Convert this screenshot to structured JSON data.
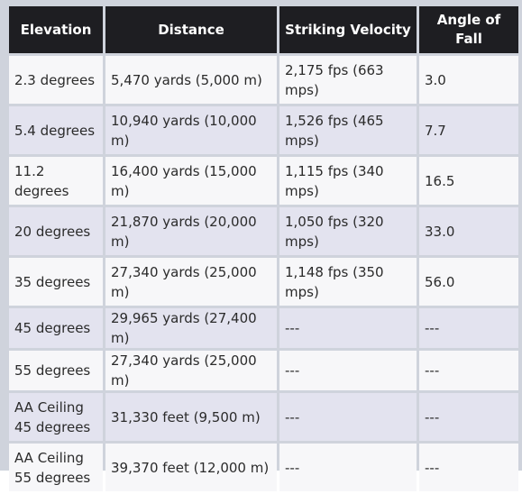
{
  "table": {
    "headers": [
      "Elevation",
      "Distance",
      "Striking Velocity",
      "Angle of Fall"
    ],
    "rows": [
      {
        "elevation": "2.3 degrees",
        "distance": "5,470 yards (5,000 m)",
        "velocity": "2,175 fps (663 mps)",
        "angle": "3.0"
      },
      {
        "elevation": "5.4 degrees",
        "distance": "10,940 yards (10,000 m)",
        "velocity": "1,526 fps (465 mps)",
        "angle": "7.7"
      },
      {
        "elevation": "11.2 degrees",
        "distance": "16,400 yards (15,000 m)",
        "velocity": "1,115 fps (340 mps)",
        "angle": "16.5"
      },
      {
        "elevation": "20 degrees",
        "distance": "21,870 yards (20,000 m)",
        "velocity": "1,050 fps (320 mps)",
        "angle": "33.0"
      },
      {
        "elevation": "35 degrees",
        "distance": "27,340 yards (25,000 m)",
        "velocity": "1,148 fps (350 mps)",
        "angle": "56.0"
      },
      {
        "elevation": "45 degrees",
        "distance": "29,965 yards (27,400 m)",
        "velocity": "---",
        "angle": "---"
      },
      {
        "elevation": "55 degrees",
        "distance": "27,340 yards (25,000 m)",
        "velocity": "---",
        "angle": "---"
      },
      {
        "elevation": "AA Ceiling 45 degrees",
        "distance": "31,330 feet (9,500 m)",
        "velocity": "---",
        "angle": "---"
      },
      {
        "elevation": "AA Ceiling 55 degrees",
        "distance": "39,370 feet (12,000 m)",
        "velocity": "---",
        "angle": "---"
      }
    ]
  }
}
